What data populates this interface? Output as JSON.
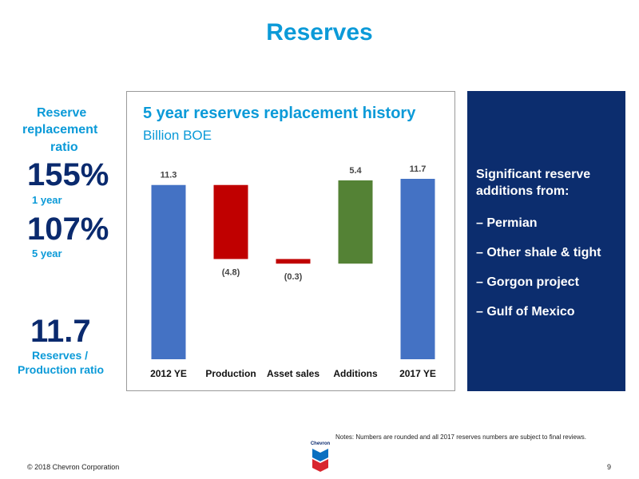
{
  "page": {
    "title": "Reserves",
    "notes": "Notes: Numbers are rounded and all 2017 reserves numbers are subject to final reviews.",
    "copyright": "© 2018 Chevron Corporation",
    "page_number": "9",
    "logo_text": "Chevron"
  },
  "left_panel": {
    "rrr_label_1": "Reserve",
    "rrr_label_2": "replacement",
    "rrr_label_3": "ratio",
    "one_year_value": "155%",
    "one_year_label": "1 year",
    "five_year_value": "107%",
    "five_year_label": "5 year",
    "rp_value": "11.7",
    "rp_label_1": "Reserves /",
    "rp_label_2": "Production ratio"
  },
  "right_panel": {
    "heading_1": "Significant reserve",
    "heading_2": "additions from:",
    "items": [
      "– Permian",
      "– Other shale & tight",
      "– Gorgon project",
      "– Gulf of Mexico"
    ]
  },
  "chart_data": {
    "type": "bar",
    "subtype": "waterfall",
    "title": "5 year reserves replacement history",
    "subtitle": "Billion BOE",
    "categories": [
      "2012 YE",
      "Production",
      "Asset sales",
      "Additions",
      "2017 YE"
    ],
    "values": [
      11.3,
      -4.8,
      -0.3,
      5.4,
      11.7
    ],
    "data_labels": [
      "11.3",
      "(4.8)",
      "(0.3)",
      "5.4",
      "11.7"
    ],
    "bar_kinds": [
      "total",
      "delta",
      "delta",
      "delta",
      "total"
    ],
    "colors": {
      "total": "#4472c4",
      "decrease": "#c00000",
      "increase": "#548235"
    },
    "ylim": [
      0,
      11.7
    ]
  }
}
